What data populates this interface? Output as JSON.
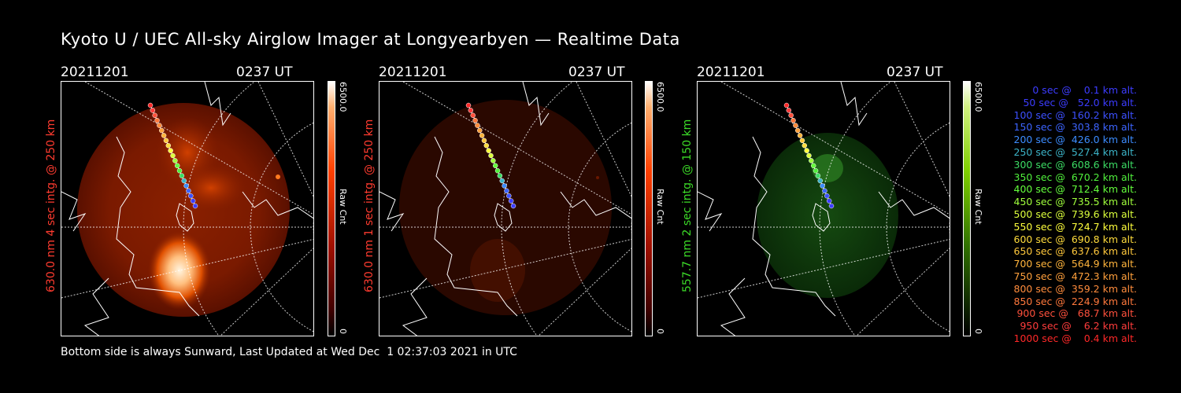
{
  "title": "Kyoto U / UEC All-sky Airglow Imager at Longyearbyen — Realtime Data",
  "footer": "Bottom side is always Sunward, Last Updated at Wed Dec  1 02:37:03 2021 in UTC",
  "panels": [
    {
      "date": "20211201",
      "time": "0237 UT",
      "side_label": "630.0 nm 4 sec intg. @ 250 km",
      "label_color": "#ff3b2f",
      "cbar_max": "6500.0",
      "cbar_unit": "Raw Cnt",
      "cbar_min": "0",
      "cbar_color": "#ff2a00",
      "tone": "red-bright"
    },
    {
      "date": "20211201",
      "time": "0237 UT",
      "side_label": "630.0 nm 1 sec intg. @ 250 km",
      "label_color": "#ff3b2f",
      "cbar_max": "6500.0",
      "cbar_unit": "Raw Cnt",
      "cbar_min": "0",
      "cbar_color": "#ff2a00",
      "tone": "red-dim"
    },
    {
      "date": "20211201",
      "time": "0237 UT",
      "side_label": "557.7 nm 2 sec intg. @ 150 km",
      "label_color": "#3cdc28",
      "cbar_max": "6500.0",
      "cbar_unit": "Raw Cnt",
      "cbar_min": "0",
      "cbar_color": "#44d400",
      "tone": "green"
    }
  ],
  "legend": [
    {
      "text": "0 sec @    0.1 km alt.",
      "color": "#3c3cff"
    },
    {
      "text": "50 sec @   52.0 km alt.",
      "color": "#3c3cff"
    },
    {
      "text": "100 sec @  160.2 km alt.",
      "color": "#3c50ff"
    },
    {
      "text": "150 sec @  303.8 km alt.",
      "color": "#3c64ff"
    },
    {
      "text": "200 sec @  426.0 km alt.",
      "color": "#3c8cff"
    },
    {
      "text": "250 sec @  527.4 km alt.",
      "color": "#3cb4c8"
    },
    {
      "text": "300 sec @  608.6 km alt.",
      "color": "#3cdc64"
    },
    {
      "text": "350 sec @  670.2 km alt.",
      "color": "#50f03c"
    },
    {
      "text": "400 sec @  712.4 km alt.",
      "color": "#64ff3c"
    },
    {
      "text": "450 sec @  735.5 km alt.",
      "color": "#a0ff3c"
    },
    {
      "text": "500 sec @  739.6 km alt.",
      "color": "#dcff3c"
    },
    {
      "text": "550 sec @  724.7 km alt.",
      "color": "#ffff3c"
    },
    {
      "text": "600 sec @  690.8 km alt.",
      "color": "#ffdc3c"
    },
    {
      "text": "650 sec @  637.6 km alt.",
      "color": "#ffc83c"
    },
    {
      "text": "700 sec @  564.9 km alt.",
      "color": "#ffb43c"
    },
    {
      "text": "750 sec @  472.3 km alt.",
      "color": "#ffa03c"
    },
    {
      "text": "800 sec @  359.2 km alt.",
      "color": "#ff8c3c"
    },
    {
      "text": "850 sec @  224.9 km alt.",
      "color": "#ff783c"
    },
    {
      "text": "900 sec @   68.7 km alt.",
      "color": "#ff503c"
    },
    {
      "text": "950 sec @    6.2 km alt.",
      "color": "#ff3c3c"
    },
    {
      "text": "1000 sec @    0.4 km alt.",
      "color": "#ff2828"
    }
  ]
}
